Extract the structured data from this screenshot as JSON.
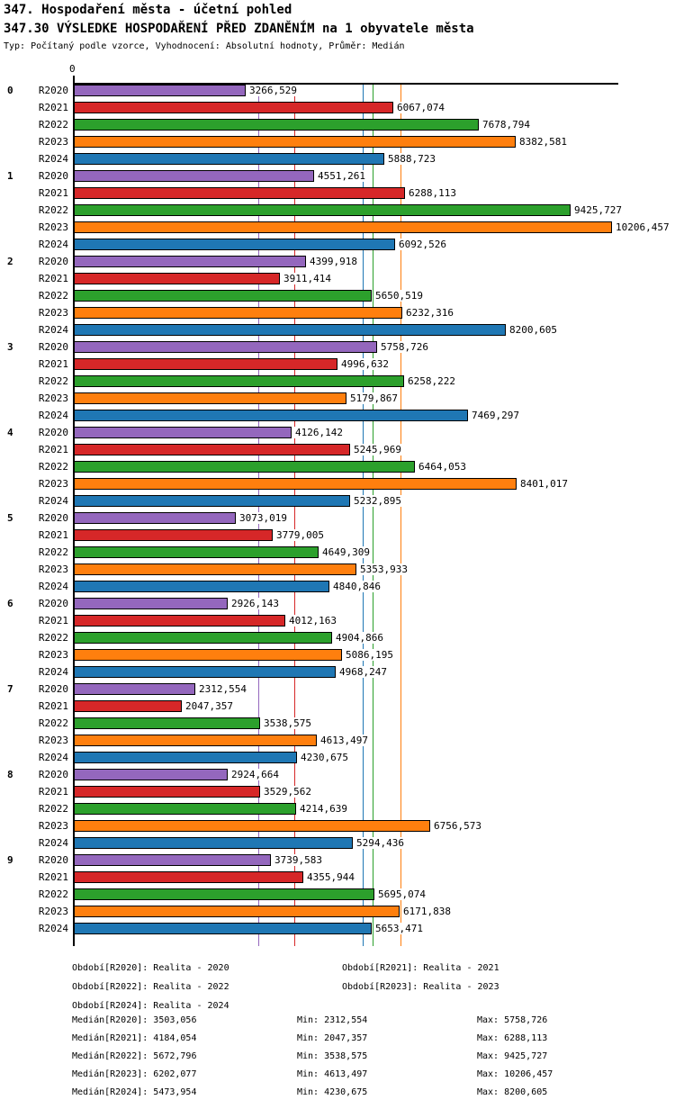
{
  "header": {
    "title": "347. Hospodaření města - účetní pohled",
    "subtitle": "347.30 VÝSLEDKE HOSPODAŘENÍ PŘED ZDANĚNÍM na 1 obyvatele města",
    "meta": "Typ: Počítaný podle vzorce, Vyhodnocení: Absolutní hodnoty, Průměr: Medián"
  },
  "chart_data": {
    "type": "bar",
    "orientation": "horizontal",
    "title": "347.30 VÝSLEDKE HOSPODAŘENÍ PŘED ZDANĚNÍM na 1 obyvatele města",
    "xlabel": "",
    "ylabel": "",
    "xlim": [
      0,
      10450
    ],
    "grid": "median-lines-only",
    "axis_origin_label": "0",
    "decimal_separator": ",",
    "value_decimals": 3,
    "categories": [
      "0",
      "1",
      "2",
      "3",
      "4",
      "5",
      "6",
      "7",
      "8",
      "9"
    ],
    "series": [
      {
        "name": "R2020",
        "color": "#9467bd",
        "median": 3503.056,
        "min": 2312.554,
        "max": 5758.726,
        "values": [
          3266.529,
          4551.261,
          4399.918,
          5758.726,
          4126.142,
          3073.019,
          2926.143,
          2312.554,
          2924.664,
          3739.583
        ]
      },
      {
        "name": "R2021",
        "color": "#d62728",
        "median": 4184.054,
        "min": 2047.357,
        "max": 6288.113,
        "values": [
          6067.074,
          6288.113,
          3911.414,
          4996.632,
          5245.969,
          3779.005,
          4012.163,
          2047.357,
          3529.562,
          4355.944
        ]
      },
      {
        "name": "R2022",
        "color": "#2ca02c",
        "median": 5672.796,
        "min": 3538.575,
        "max": 9425.727,
        "values": [
          7678.794,
          9425.727,
          5650.519,
          6258.222,
          6464.053,
          4649.309,
          4904.866,
          3538.575,
          4214.639,
          5695.074
        ]
      },
      {
        "name": "R2023",
        "color": "#ff7f0e",
        "median": 6202.077,
        "min": 4613.497,
        "max": 10206.457,
        "values": [
          8382.581,
          10206.457,
          6232.316,
          5179.867,
          8401.017,
          5353.933,
          5086.195,
          4613.497,
          6756.573,
          6171.838
        ]
      },
      {
        "name": "R2024",
        "color": "#1f77b4",
        "median": 5473.954,
        "min": 4230.675,
        "max": 8200.605,
        "values": [
          5888.723,
          6092.526,
          8200.605,
          7469.297,
          5232.895,
          4840.846,
          4968.247,
          4230.675,
          5294.436,
          5653.471
        ]
      }
    ]
  },
  "footer": {
    "periods": [
      [
        "Období[R2020]: Realita - 2020",
        "Období[R2021]: Realita - 2021"
      ],
      [
        "Období[R2022]: Realita - 2022",
        "Období[R2023]: Realita - 2023"
      ],
      [
        "Období[R2024]: Realita - 2024",
        ""
      ]
    ],
    "stats": [
      {
        "median": "Medián[R2020]: 3503,056",
        "min": "Min: 2312,554",
        "max": "Max: 5758,726"
      },
      {
        "median": "Medián[R2021]: 4184,054",
        "min": "Min: 2047,357",
        "max": "Max: 6288,113"
      },
      {
        "median": "Medián[R2022]: 5672,796",
        "min": "Min: 3538,575",
        "max": "Max: 9425,727"
      },
      {
        "median": "Medián[R2023]: 6202,077",
        "min": "Min: 4613,497",
        "max": "Max: 10206,457"
      },
      {
        "median": "Medián[R2024]: 5473,954",
        "min": "Min: 4230,675",
        "max": "Max: 8200,605"
      }
    ]
  }
}
